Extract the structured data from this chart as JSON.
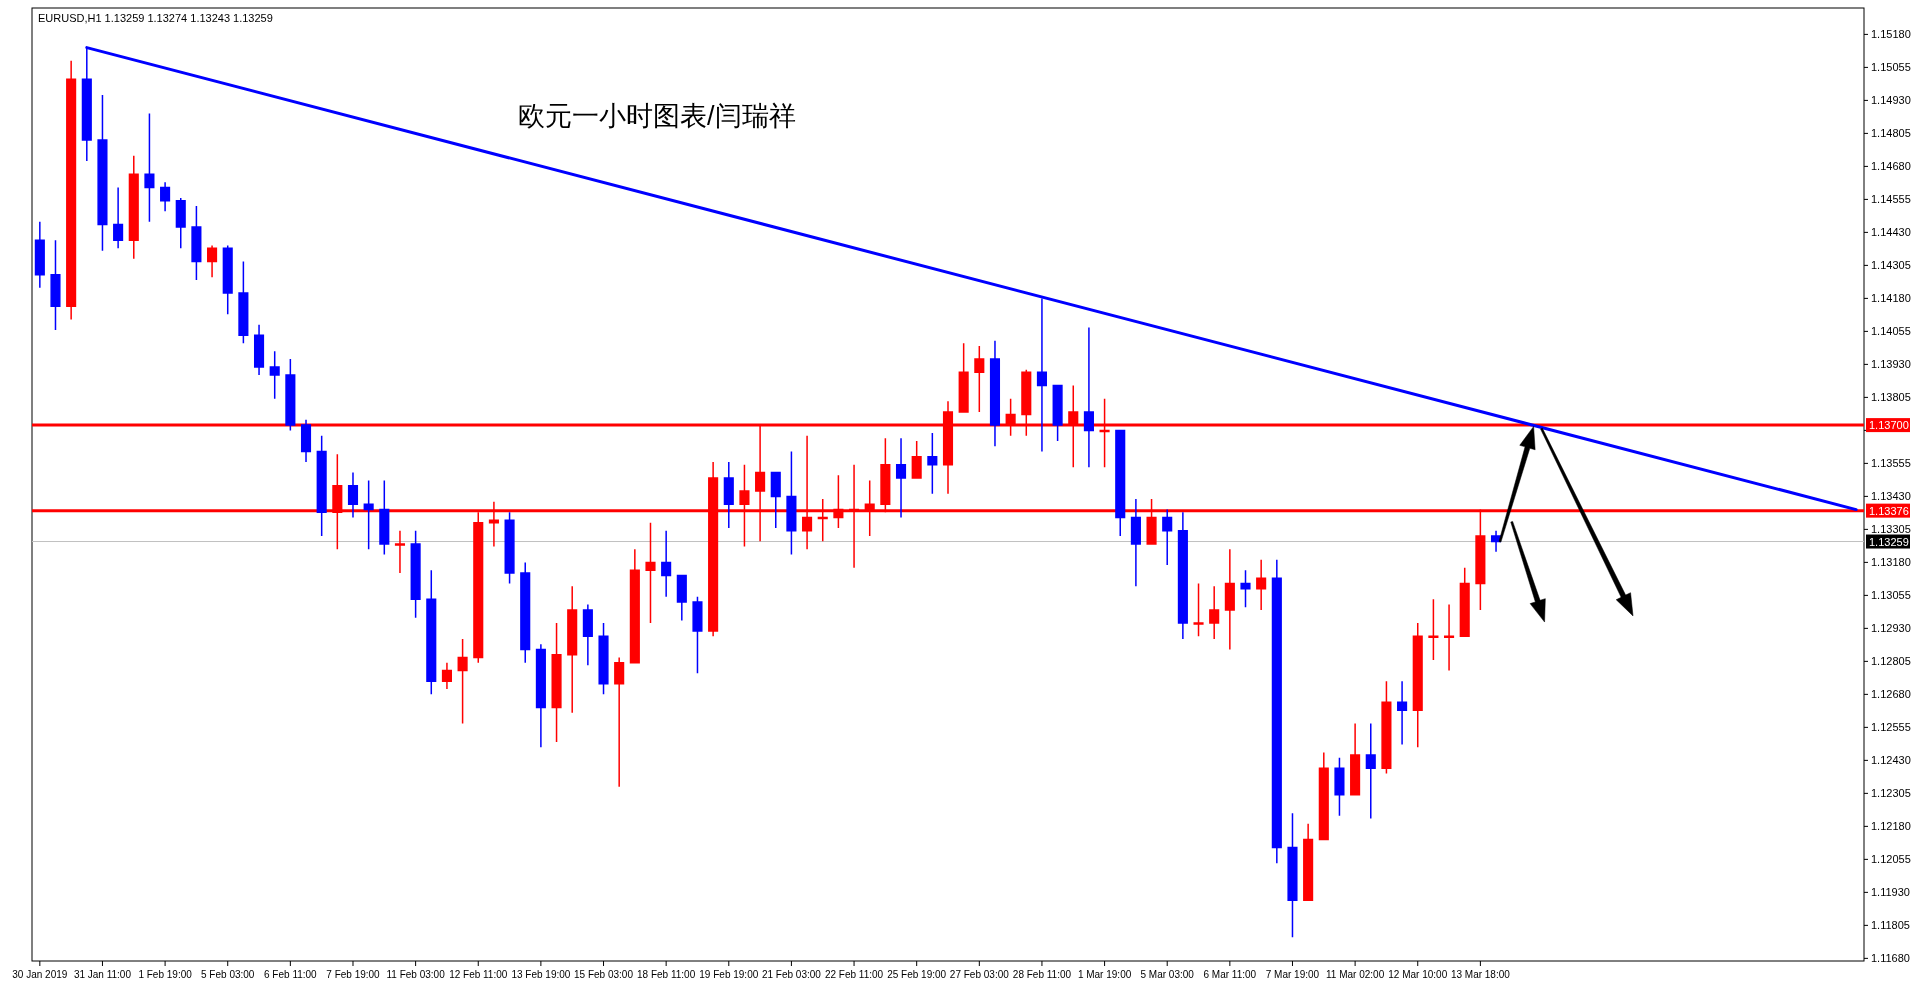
{
  "chart_data": {
    "type": "candlestick",
    "title": "欧元一小时图表/闫瑞祥",
    "subtitle": "EURUSD,H1  1.13259 1.13274 1.13243 1.13259",
    "categories": [
      "30 Jan 2019",
      null,
      null,
      null,
      "31 Jan 11:00",
      null,
      null,
      null,
      "1 Feb 19:00",
      null,
      null,
      null,
      "5 Feb 03:00",
      null,
      null,
      null,
      "6 Feb 11:00",
      null,
      null,
      null,
      "7 Feb 19:00",
      null,
      null,
      null,
      "11 Feb 03:00",
      null,
      null,
      null,
      "12 Feb 11:00",
      null,
      null,
      null,
      "13 Feb 19:00",
      null,
      null,
      null,
      "15 Feb 03:00",
      null,
      null,
      null,
      "18 Feb 11:00",
      null,
      null,
      null,
      "19 Feb 19:00",
      null,
      null,
      null,
      "21 Feb 03:00",
      null,
      null,
      null,
      "22 Feb 11:00",
      null,
      null,
      null,
      "25 Feb 19:00",
      null,
      null,
      null,
      "27 Feb 03:00",
      null,
      null,
      null,
      "28 Feb 11:00",
      null,
      null,
      null,
      "1 Mar 19:00",
      null,
      null,
      null,
      "5 Mar 03:00",
      null,
      null,
      null,
      "6 Mar 11:00",
      null,
      null,
      null,
      "7 Mar 19:00",
      null,
      null,
      null,
      "11 Mar 02:00",
      null,
      null,
      null,
      "12 Mar 10:00",
      null,
      null,
      null,
      "13 Mar 18:00",
      null,
      null,
      null,
      null,
      null,
      null,
      null,
      null,
      null,
      null,
      null,
      null,
      null,
      null,
      null,
      null,
      null,
      null,
      null,
      null,
      null,
      null,
      null,
      null
    ],
    "ohlc": [
      [
        1.144,
        1.1447,
        1.1422,
        1.1427
      ],
      [
        1.1427,
        1.144,
        1.1406,
        1.1415
      ],
      [
        1.1415,
        1.1508,
        1.141,
        1.1501
      ],
      [
        1.1501,
        1.1513,
        1.147,
        1.1478
      ],
      [
        1.1478,
        1.1495,
        1.1436,
        1.1446
      ],
      [
        1.1446,
        1.146,
        1.1437,
        1.144
      ],
      [
        1.144,
        1.1472,
        1.1433,
        1.1465
      ],
      [
        1.1465,
        1.1488,
        1.1447,
        1.146
      ],
      [
        1.146,
        1.1462,
        1.1451,
        1.1455
      ],
      [
        1.1455,
        1.1456,
        1.1437,
        1.1445
      ],
      [
        1.1445,
        1.1453,
        1.1425,
        1.1432
      ],
      [
        1.1432,
        1.1438,
        1.1426,
        1.1437
      ],
      [
        1.1437,
        1.1438,
        1.1412,
        1.142
      ],
      [
        1.142,
        1.1432,
        1.1401,
        1.1404
      ],
      [
        1.1404,
        1.1408,
        1.1389,
        1.1392
      ],
      [
        1.1392,
        1.1398,
        1.138,
        1.1389
      ],
      [
        1.1389,
        1.1395,
        1.1368,
        1.137
      ],
      [
        1.137,
        1.1372,
        1.1356,
        1.136
      ],
      [
        1.136,
        1.1366,
        1.1328,
        1.1337
      ],
      [
        1.1337,
        1.1359,
        1.1323,
        1.1347
      ],
      [
        1.1347,
        1.1352,
        1.1335,
        1.134
      ],
      [
        1.134,
        1.1349,
        1.1323,
        1.1338
      ],
      [
        1.1338,
        1.1349,
        1.1321,
        1.1325
      ],
      [
        1.1325,
        1.133,
        1.1314,
        1.1325
      ],
      [
        1.1325,
        1.133,
        1.1297,
        1.1304
      ],
      [
        1.1304,
        1.1315,
        1.1268,
        1.1273
      ],
      [
        1.1273,
        1.128,
        1.127,
        1.1277
      ],
      [
        1.1277,
        1.1289,
        1.1257,
        1.1282
      ],
      [
        1.1282,
        1.1337,
        1.128,
        1.1333
      ],
      [
        1.1333,
        1.1341,
        1.1324,
        1.1334
      ],
      [
        1.1334,
        1.1337,
        1.131,
        1.1314
      ],
      [
        1.1314,
        1.1318,
        1.128,
        1.1285
      ],
      [
        1.1285,
        1.1287,
        1.1248,
        1.1263
      ],
      [
        1.1263,
        1.1295,
        1.125,
        1.1283
      ],
      [
        1.1283,
        1.1309,
        1.1261,
        1.13
      ],
      [
        1.13,
        1.1302,
        1.1279,
        1.129
      ],
      [
        1.129,
        1.1295,
        1.1268,
        1.1272
      ],
      [
        1.1272,
        1.1282,
        1.1233,
        1.128
      ],
      [
        1.128,
        1.1323,
        1.128,
        1.1315
      ],
      [
        1.1315,
        1.1333,
        1.1295,
        1.1318
      ],
      [
        1.1318,
        1.133,
        1.1305,
        1.1313
      ],
      [
        1.1313,
        1.1313,
        1.1296,
        1.1303
      ],
      [
        1.1303,
        1.1305,
        1.1276,
        1.1292
      ],
      [
        1.1292,
        1.1356,
        1.129,
        1.135
      ],
      [
        1.135,
        1.1356,
        1.1331,
        1.134
      ],
      [
        1.134,
        1.1355,
        1.1324,
        1.1345
      ],
      [
        1.1345,
        1.137,
        1.1326,
        1.1352
      ],
      [
        1.1352,
        1.1352,
        1.1331,
        1.1343
      ],
      [
        1.1343,
        1.136,
        1.1321,
        1.133
      ],
      [
        1.133,
        1.1366,
        1.1323,
        1.1335
      ],
      [
        1.1335,
        1.1342,
        1.1326,
        1.1335
      ],
      [
        1.1335,
        1.1351,
        1.1331,
        1.1338
      ],
      [
        1.1338,
        1.1355,
        1.1316,
        1.1338
      ],
      [
        1.1338,
        1.1349,
        1.1328,
        1.134
      ],
      [
        1.134,
        1.1365,
        1.1337,
        1.1355
      ],
      [
        1.1355,
        1.1365,
        1.1335,
        1.135
      ],
      [
        1.135,
        1.1364,
        1.135,
        1.1358
      ],
      [
        1.1358,
        1.1367,
        1.1344,
        1.1355
      ],
      [
        1.1355,
        1.1379,
        1.1344,
        1.1375
      ],
      [
        1.1375,
        1.1401,
        1.1375,
        1.139
      ],
      [
        1.139,
        1.14,
        1.1375,
        1.1395
      ],
      [
        1.1395,
        1.1402,
        1.1362,
        1.137
      ],
      [
        1.137,
        1.138,
        1.1366,
        1.1374
      ],
      [
        1.1374,
        1.1391,
        1.1366,
        1.139
      ],
      [
        1.139,
        1.1418,
        1.136,
        1.1385
      ],
      [
        1.1385,
        1.1385,
        1.1364,
        1.137
      ],
      [
        1.137,
        1.1385,
        1.1354,
        1.1375
      ],
      [
        1.1375,
        1.1407,
        1.1354,
        1.1368
      ],
      [
        1.1368,
        1.138,
        1.1354,
        1.1368
      ],
      [
        1.1368,
        1.1368,
        1.1328,
        1.1335
      ],
      [
        1.1335,
        1.1342,
        1.1309,
        1.1325
      ],
      [
        1.1325,
        1.1342,
        1.1325,
        1.1335
      ],
      [
        1.1335,
        1.1338,
        1.1317,
        1.133
      ],
      [
        1.133,
        1.1337,
        1.1289,
        1.1295
      ],
      [
        1.1295,
        1.131,
        1.129,
        1.1295
      ],
      [
        1.1295,
        1.1309,
        1.1289,
        1.13
      ],
      [
        1.13,
        1.1323,
        1.1285,
        1.131
      ],
      [
        1.131,
        1.1315,
        1.1301,
        1.1308
      ],
      [
        1.1308,
        1.1319,
        1.13,
        1.1312
      ],
      [
        1.1312,
        1.1319,
        1.1204,
        1.121
      ],
      [
        1.121,
        1.1223,
        1.1176,
        1.119
      ],
      [
        1.119,
        1.1219,
        1.119,
        1.1213
      ],
      [
        1.1213,
        1.1246,
        1.1213,
        1.124
      ],
      [
        1.124,
        1.1244,
        1.1222,
        1.123
      ],
      [
        1.123,
        1.1257,
        1.123,
        1.1245
      ],
      [
        1.1245,
        1.1257,
        1.1221,
        1.124
      ],
      [
        1.124,
        1.1273,
        1.1238,
        1.1265
      ],
      [
        1.1265,
        1.1273,
        1.1249,
        1.1262
      ],
      [
        1.1262,
        1.1295,
        1.1248,
        1.129
      ],
      [
        1.129,
        1.1304,
        1.1281,
        1.129
      ],
      [
        1.129,
        1.1302,
        1.1277,
        1.129
      ],
      [
        1.129,
        1.1316,
        1.129,
        1.131
      ],
      [
        1.131,
        1.1338,
        1.13,
        1.1328
      ],
      [
        1.1328,
        1.133,
        1.1322,
        1.13259
      ],
      null,
      null,
      null,
      null,
      null,
      null,
      null,
      null,
      null,
      null,
      null,
      null,
      null,
      null,
      null,
      null,
      null,
      null,
      null,
      null,
      null,
      null,
      null
    ],
    "ylim": [
      1.1167,
      1.1528
    ],
    "yticks": [
      {
        "value": 1.1168,
        "label": "1.11680"
      },
      {
        "value": 1.11805,
        "label": "1.11805"
      },
      {
        "value": 1.1193,
        "label": "1.11930"
      },
      {
        "value": 1.12055,
        "label": "1.12055"
      },
      {
        "value": 1.1218,
        "label": "1.12180"
      },
      {
        "value": 1.12305,
        "label": "1.12305"
      },
      {
        "value": 1.1243,
        "label": "1.12430"
      },
      {
        "value": 1.12555,
        "label": "1.12555"
      },
      {
        "value": 1.1268,
        "label": "1.12680"
      },
      {
        "value": 1.12805,
        "label": "1.12805"
      },
      {
        "value": 1.1293,
        "label": "1.12930"
      },
      {
        "value": 1.13055,
        "label": "1.13055"
      },
      {
        "value": 1.1318,
        "label": "1.13180"
      },
      {
        "value": 1.13305,
        "label": "1.13305"
      },
      {
        "value": 1.1343,
        "label": "1.13430"
      },
      {
        "value": 1.13555,
        "label": "1.13555"
      },
      {
        "value": 1.1368,
        "label": null
      },
      {
        "value": 1.13805,
        "label": "1.13805"
      },
      {
        "value": 1.1393,
        "label": "1.13930"
      },
      {
        "value": 1.14055,
        "label": "1.14055"
      },
      {
        "value": 1.1418,
        "label": "1.14180"
      },
      {
        "value": 1.14305,
        "label": "1.14305"
      },
      {
        "value": 1.1443,
        "label": "1.14430"
      },
      {
        "value": 1.14555,
        "label": "1.14555"
      },
      {
        "value": 1.1468,
        "label": "1.14680"
      },
      {
        "value": 1.14805,
        "label": "1.14805"
      },
      {
        "value": 1.1493,
        "label": "1.14930"
      },
      {
        "value": 1.15055,
        "label": "1.15055"
      },
      {
        "value": 1.1518,
        "label": "1.15180"
      }
    ],
    "series": [
      {
        "type": "line",
        "color": "#0000ff",
        "values": [
          null,
          null,
          null,
          1.1513,
          null,
          null,
          null,
          null,
          null,
          null,
          null,
          null,
          null,
          null,
          null,
          null,
          null,
          null,
          null,
          null,
          null,
          null,
          null,
          null,
          null,
          null,
          null,
          null,
          null,
          null,
          null,
          null,
          null,
          null,
          null,
          null,
          null,
          null,
          null,
          null,
          null,
          null,
          null,
          null,
          null,
          null,
          null,
          null,
          null,
          null,
          null,
          null,
          null,
          null,
          null,
          null,
          null,
          null,
          null,
          null,
          null,
          null,
          null,
          null,
          null,
          null,
          null,
          null,
          null,
          null,
          null,
          null,
          null,
          null,
          null,
          null,
          null,
          null,
          null,
          null,
          null,
          null,
          null,
          null,
          null,
          null,
          null,
          null,
          null,
          null,
          null,
          null,
          null,
          null,
          null,
          null,
          null,
          null,
          null,
          null,
          null,
          null,
          null,
          null,
          null,
          null,
          null,
          null,
          null,
          null,
          null,
          null,
          null,
          null,
          null,
          null,
          1.1338
        ]
      }
    ],
    "ref_lines": [
      {
        "axis": "y",
        "value": 1.137,
        "label": "1.13700",
        "color": "#ff0000"
      },
      {
        "axis": "y",
        "value": 1.13376,
        "label": "1.13376",
        "color": "#ff0000"
      },
      {
        "axis": "y",
        "value": 1.13259,
        "label": "1.13259",
        "color": "#c0c0c0"
      }
    ]
  }
}
